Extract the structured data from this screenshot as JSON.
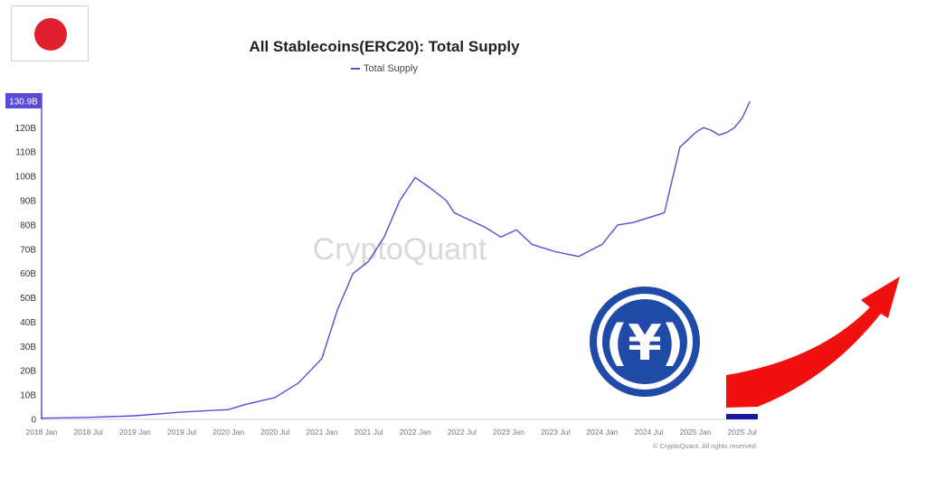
{
  "flag": {
    "icon": "japan-flag-icon",
    "color": "#e21f2e"
  },
  "chart_data": {
    "type": "line",
    "title": "All Stablecoins(ERC20): Total Supply",
    "legend": [
      "Total Supply"
    ],
    "legend_placement": "top-center",
    "series": [
      {
        "name": "Total Supply",
        "color": "#5a4ad6",
        "x": [
          "2018-01",
          "2018-07",
          "2019-01",
          "2019-07",
          "2020-01",
          "2020-03",
          "2020-07",
          "2020-10",
          "2021-01",
          "2021-03",
          "2021-05",
          "2021-07",
          "2021-09",
          "2021-11",
          "2022-01",
          "2022-03",
          "2022-05",
          "2022-06",
          "2022-08",
          "2022-10",
          "2022-12",
          "2023-02",
          "2023-04",
          "2023-07",
          "2023-10",
          "2024-01",
          "2024-03",
          "2024-05",
          "2024-07",
          "2024-09",
          "2024-11",
          "2024-12",
          "2025-01",
          "2025-02",
          "2025-03",
          "2025-04",
          "2025-05",
          "2025-06",
          "2025-07",
          "2025-08"
        ],
        "y": [
          0.5,
          0.8,
          1.5,
          3,
          4,
          6,
          9,
          15,
          25,
          45,
          60,
          65,
          75,
          90,
          99.5,
          95,
          90,
          85,
          82,
          79,
          75,
          78,
          72,
          69,
          67,
          72,
          80,
          81,
          83,
          85,
          112,
          115,
          118,
          120,
          119,
          117,
          118,
          120,
          124,
          130.9
        ]
      }
    ],
    "y_ticks": [
      "0",
      "10B",
      "20B",
      "30B",
      "40B",
      "50B",
      "60B",
      "70B",
      "80B",
      "90B",
      "100B",
      "110B",
      "120B"
    ],
    "x_ticks": [
      "2018 Jan",
      "2018 Jul",
      "2019 Jan",
      "2019 Jul",
      "2020 Jan",
      "2020 Jul",
      "2021 Jan",
      "2021 Jul",
      "2022 Jan",
      "2022 Jul",
      "2023 Jan",
      "2023 Jul",
      "2024 Jan",
      "2024 Jul",
      "2025 Jan",
      "2025 Jul"
    ],
    "latest_value_label": "130.9B",
    "latest_value_color": "#5a4ad6",
    "ylim": [
      0,
      130.9
    ],
    "grid": false,
    "watermark": "CryptoQuant",
    "credit": "© CryptoQuant. All rights reserved"
  },
  "overlay": {
    "coin_icon": "jpyc-yen-coin-icon",
    "coin_glyph": "(¥)",
    "coin_color": "#1f4aa8",
    "arrow_icon": "red-upward-arrow-icon",
    "arrow_color": "#f01010",
    "bar_color": "#1a1aa0"
  }
}
